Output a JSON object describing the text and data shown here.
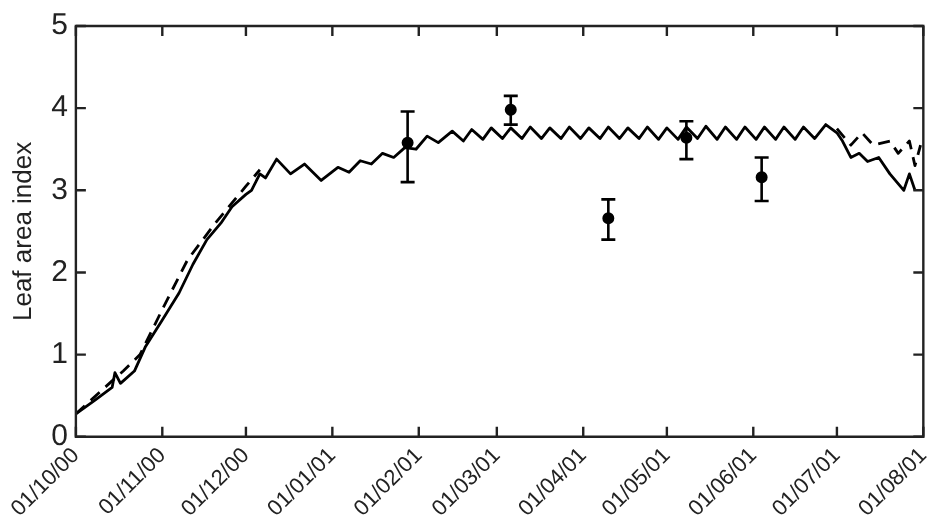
{
  "chart_data": {
    "type": "line",
    "ylabel": "Leaf area index",
    "xlim": [
      "2000-10-01",
      "2001-08-01"
    ],
    "xticks": [
      {
        "value": "2000-10-01",
        "label": "01/10/00"
      },
      {
        "value": "2000-11-01",
        "label": "01/11/00"
      },
      {
        "value": "2000-12-01",
        "label": "01/12/00"
      },
      {
        "value": "2001-01-01",
        "label": "01/01/01"
      },
      {
        "value": "2001-02-01",
        "label": "01/02/01"
      },
      {
        "value": "2001-03-01",
        "label": "01/03/01"
      },
      {
        "value": "2001-04-01",
        "label": "01/04/01"
      },
      {
        "value": "2001-05-01",
        "label": "01/05/01"
      },
      {
        "value": "2001-06-01",
        "label": "01/06/01"
      },
      {
        "value": "2001-07-01",
        "label": "01/07/01"
      },
      {
        "value": "2001-08-01",
        "label": "01/08/01"
      }
    ],
    "ylim": [
      0,
      5
    ],
    "yticks": [
      0,
      1,
      2,
      3,
      4,
      5
    ],
    "grid": false,
    "legend": false,
    "series": [
      {
        "type": "line",
        "color": "#000000",
        "line_style": "solid",
        "marker": "none",
        "x": [
          "2000-10-01",
          "2000-10-08",
          "2000-10-14",
          "2000-10-15",
          "2000-10-17",
          "2000-10-22",
          "2000-10-26",
          "2000-11-01",
          "2000-11-07",
          "2000-11-12",
          "2000-11-17",
          "2000-11-22",
          "2000-11-26",
          "2000-12-01",
          "2000-12-03",
          "2000-12-06",
          "2000-12-08",
          "2000-12-12",
          "2000-12-17",
          "2000-12-22",
          "2000-12-28",
          "2001-01-03",
          "2001-01-07",
          "2001-01-11",
          "2001-01-15",
          "2001-01-19",
          "2001-01-23",
          "2001-01-27",
          "2001-01-31",
          "2001-02-04",
          "2001-02-08",
          "2001-02-13",
          "2001-02-17",
          "2001-02-20",
          "2001-02-24",
          "2001-02-27",
          "2001-03-03",
          "2001-03-06",
          "2001-03-10",
          "2001-03-13",
          "2001-03-17",
          "2001-03-20",
          "2001-03-24",
          "2001-03-27",
          "2001-03-31",
          "2001-04-03",
          "2001-04-07",
          "2001-04-10",
          "2001-04-14",
          "2001-04-17",
          "2001-04-21",
          "2001-04-24",
          "2001-04-28",
          "2001-05-01",
          "2001-05-05",
          "2001-05-08",
          "2001-05-12",
          "2001-05-15",
          "2001-05-19",
          "2001-05-22",
          "2001-05-26",
          "2001-05-29",
          "2001-06-02",
          "2001-06-05",
          "2001-06-09",
          "2001-06-12",
          "2001-06-16",
          "2001-06-19",
          "2001-06-23",
          "2001-06-27",
          "2001-07-01",
          "2001-07-03",
          "2001-07-06",
          "2001-07-09",
          "2001-07-12",
          "2001-07-16",
          "2001-07-20",
          "2001-07-25",
          "2001-07-27",
          "2001-07-29"
        ],
        "values": [
          0.28,
          0.45,
          0.6,
          0.78,
          0.65,
          0.8,
          1.1,
          1.42,
          1.75,
          2.1,
          2.4,
          2.6,
          2.8,
          2.95,
          3.0,
          3.2,
          3.15,
          3.38,
          3.2,
          3.32,
          3.12,
          3.28,
          3.22,
          3.36,
          3.32,
          3.45,
          3.4,
          3.52,
          3.5,
          3.66,
          3.58,
          3.72,
          3.6,
          3.74,
          3.62,
          3.76,
          3.63,
          3.76,
          3.63,
          3.77,
          3.63,
          3.76,
          3.63,
          3.77,
          3.63,
          3.76,
          3.63,
          3.77,
          3.63,
          3.76,
          3.63,
          3.77,
          3.62,
          3.76,
          3.62,
          3.77,
          3.63,
          3.78,
          3.62,
          3.77,
          3.62,
          3.77,
          3.62,
          3.77,
          3.62,
          3.77,
          3.62,
          3.77,
          3.63,
          3.8,
          3.7,
          3.6,
          3.4,
          3.45,
          3.35,
          3.4,
          3.2,
          3.0,
          3.2,
          3.0
        ]
      },
      {
        "type": "line",
        "color": "#000000",
        "line_style": "dashed",
        "marker": "none",
        "x": [
          "2000-10-01",
          "2000-10-14",
          "2000-10-18",
          "2000-10-24",
          "2000-11-01",
          "2000-11-10",
          "2000-11-20",
          "2000-12-01",
          "2000-12-06",
          "2000-12-10",
          "2001-07-01",
          "2001-07-06",
          "2001-07-10",
          "2001-07-14",
          "2001-07-20",
          "2001-07-23",
          "2001-07-27",
          "2001-07-29",
          "2001-07-31"
        ],
        "values": [
          0.28,
          0.68,
          0.8,
          1.0,
          1.55,
          2.15,
          2.6,
          3.05,
          3.25,
          null,
          3.75,
          3.55,
          3.7,
          3.55,
          3.6,
          3.45,
          3.6,
          3.3,
          3.55
        ]
      },
      {
        "type": "scatter",
        "color": "#000000",
        "marker": "circle",
        "x": [
          "2001-01-28",
          "2001-03-06",
          "2001-04-10",
          "2001-05-08",
          "2001-06-04"
        ],
        "values": [
          3.58,
          3.98,
          2.66,
          3.64,
          3.16
        ],
        "errors": [
          [
            3.1,
            3.96
          ],
          [
            3.8,
            4.15
          ],
          [
            2.4,
            2.89
          ],
          [
            3.38,
            3.84
          ],
          [
            2.87,
            3.4
          ]
        ]
      }
    ]
  }
}
